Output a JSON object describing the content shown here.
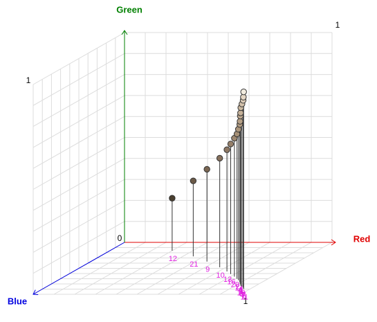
{
  "chart_data": {
    "type": "scatter3d",
    "axis_titles": {
      "red": "Red",
      "green": "Green",
      "blue": "Blue"
    },
    "axis_colors": {
      "red": "#e00000",
      "green": "#008000",
      "blue": "#0000e0"
    },
    "xlim": [
      0,
      1
    ],
    "ylim": [
      0,
      1
    ],
    "zlim": [
      0,
      1
    ],
    "xticks": [
      1
    ],
    "yticks": [
      0,
      1
    ],
    "zticks": [
      1
    ],
    "grid": true,
    "label_color": "#e020e0",
    "points": {
      "labels": [
        "12",
        "21",
        "9",
        "10",
        "13",
        "16",
        "20",
        "2",
        "14",
        "4",
        "1",
        "5",
        "19",
        "8",
        "3",
        "7",
        "6",
        "11"
      ],
      "red": [
        0.3,
        0.45,
        0.56,
        0.67,
        0.74,
        0.78,
        0.82,
        0.85,
        0.87,
        0.89,
        0.9,
        0.91,
        0.92,
        0.93,
        0.94,
        0.95,
        0.96,
        0.97
      ],
      "green": [
        0.25,
        0.36,
        0.44,
        0.52,
        0.58,
        0.62,
        0.66,
        0.69,
        0.72,
        0.75,
        0.77,
        0.8,
        0.82,
        0.85,
        0.87,
        0.89,
        0.91,
        0.94
      ],
      "blue": [
        0.16,
        0.27,
        0.37,
        0.48,
        0.56,
        0.61,
        0.66,
        0.7,
        0.73,
        0.76,
        0.78,
        0.8,
        0.82,
        0.84,
        0.85,
        0.86,
        0.88,
        0.9
      ],
      "colors": [
        "#4a4030",
        "#6b5a48",
        "#7a6652",
        "#86705c",
        "#8e7864",
        "#96806a",
        "#9e8870",
        "#a69076",
        "#ac967c",
        "#b29c82",
        "#b8a288",
        "#bea990",
        "#c4b098",
        "#cab8a0",
        "#d2c0aa",
        "#dacab6",
        "#e4d6c4",
        "#f2ecdf"
      ]
    }
  }
}
